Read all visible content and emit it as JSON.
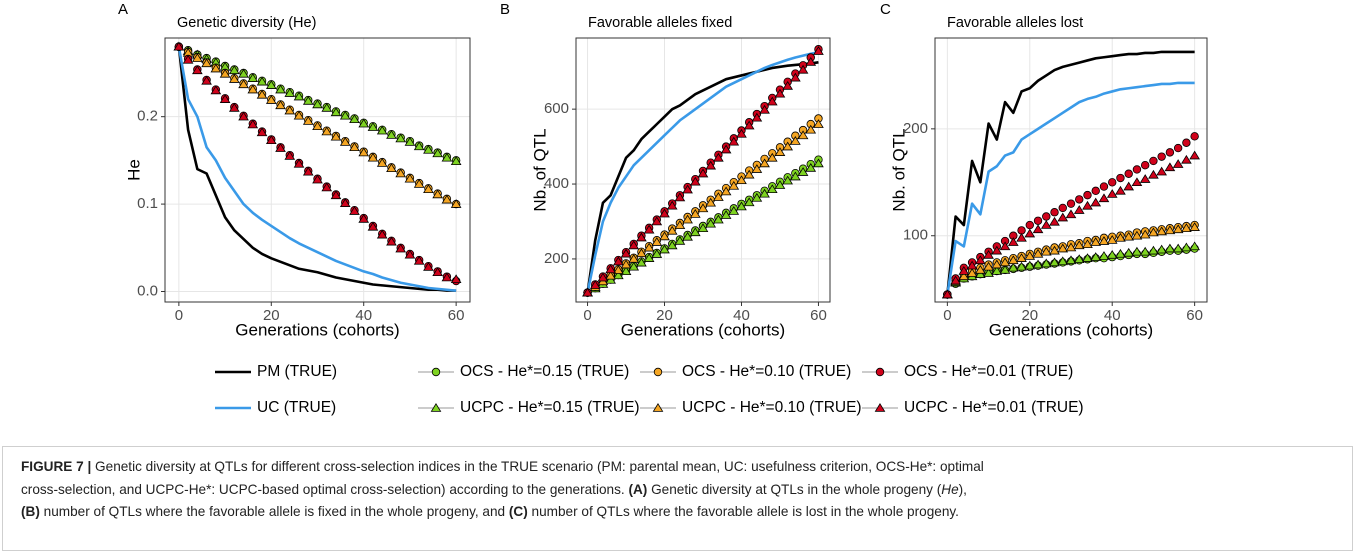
{
  "legend": [
    {
      "name": "PM (TRUE)",
      "color": "#000000",
      "marker": "line"
    },
    {
      "name": "UC (TRUE)",
      "color": "#3a9ae8",
      "marker": "line"
    },
    {
      "name": "OCS - He*=0.15 (TRUE)",
      "color": "#7ed321",
      "marker": "circle"
    },
    {
      "name": "UCPC - He*=0.15 (TRUE)",
      "color": "#7ed321",
      "marker": "triangle"
    },
    {
      "name": "OCS - He*=0.10 (TRUE)",
      "color": "#f5a623",
      "marker": "circle"
    },
    {
      "name": "UCPC - He*=0.10 (TRUE)",
      "color": "#f5a623",
      "marker": "triangle"
    },
    {
      "name": "OCS - He*=0.01 (TRUE)",
      "color": "#d0021b",
      "marker": "circle"
    },
    {
      "name": "UCPC - He*=0.01 (TRUE)",
      "color": "#d0021b",
      "marker": "triangle"
    }
  ],
  "chart_data": [
    {
      "type": "line",
      "panel": "A",
      "title": "Genetic diversity (He)",
      "y_label": "He",
      "x_label": "Generations (cohorts)",
      "x": [
        0,
        2,
        4,
        6,
        8,
        10,
        12,
        14,
        16,
        18,
        20,
        22,
        24,
        26,
        28,
        30,
        32,
        34,
        36,
        38,
        40,
        42,
        44,
        46,
        48,
        50,
        52,
        54,
        56,
        58,
        60
      ],
      "xlim": [
        -3,
        63
      ],
      "xticks": [
        0,
        20,
        40,
        60
      ],
      "ylim": [
        -0.012,
        0.29
      ],
      "yticks": [
        {
          "value": 0,
          "label": "0.0"
        },
        0.1,
        0.2
      ],
      "grid": true,
      "series": [
        {
          "values": [
            0.28,
            0.185,
            0.14,
            0.135,
            0.11,
            0.085,
            0.07,
            0.06,
            0.05,
            0.043,
            0.038,
            0.034,
            0.03,
            0.026,
            0.024,
            0.022,
            0.019,
            0.016,
            0.014,
            0.012,
            0.01,
            0.008,
            0.007,
            0.006,
            0.005,
            0.004,
            0.003,
            0.002,
            0.002,
            0.001,
            0.001
          ]
        },
        {
          "values": [
            0.28,
            0.22,
            0.2,
            0.165,
            0.15,
            0.13,
            0.115,
            0.1,
            0.09,
            0.082,
            0.075,
            0.068,
            0.061,
            0.055,
            0.05,
            0.045,
            0.04,
            0.035,
            0.031,
            0.027,
            0.023,
            0.02,
            0.016,
            0.013,
            0.01,
            0.008,
            0.006,
            0.004,
            0.003,
            0.002,
            0.001
          ]
        },
        {
          "values": [
            0.28,
            0.276,
            0.271,
            0.267,
            0.263,
            0.258,
            0.254,
            0.25,
            0.245,
            0.241,
            0.237,
            0.232,
            0.228,
            0.224,
            0.219,
            0.215,
            0.211,
            0.206,
            0.202,
            0.198,
            0.193,
            0.189,
            0.185,
            0.18,
            0.176,
            0.172,
            0.167,
            0.163,
            0.159,
            0.154,
            0.15
          ]
        },
        {
          "values": [
            0.28,
            0.275,
            0.271,
            0.266,
            0.262,
            0.257,
            0.253,
            0.249,
            0.244,
            0.24,
            0.236,
            0.231,
            0.227,
            0.223,
            0.218,
            0.214,
            0.21,
            0.205,
            0.201,
            0.197,
            0.192,
            0.188,
            0.184,
            0.179,
            0.175,
            0.171,
            0.166,
            0.162,
            0.158,
            0.153,
            0.149
          ]
        },
        {
          "values": [
            0.28,
            0.274,
            0.268,
            0.262,
            0.256,
            0.25,
            0.244,
            0.238,
            0.232,
            0.226,
            0.22,
            0.214,
            0.208,
            0.202,
            0.196,
            0.19,
            0.184,
            0.178,
            0.172,
            0.166,
            0.16,
            0.154,
            0.148,
            0.142,
            0.136,
            0.13,
            0.124,
            0.118,
            0.112,
            0.106,
            0.1
          ]
        },
        {
          "values": [
            0.28,
            0.273,
            0.267,
            0.261,
            0.255,
            0.249,
            0.243,
            0.237,
            0.231,
            0.225,
            0.219,
            0.213,
            0.207,
            0.201,
            0.195,
            0.189,
            0.183,
            0.177,
            0.171,
            0.165,
            0.159,
            0.153,
            0.147,
            0.141,
            0.135,
            0.129,
            0.123,
            0.117,
            0.111,
            0.105,
            0.1
          ]
        },
        {
          "values": [
            0.28,
            0.266,
            0.254,
            0.242,
            0.231,
            0.221,
            0.211,
            0.201,
            0.192,
            0.183,
            0.174,
            0.165,
            0.156,
            0.147,
            0.138,
            0.129,
            0.12,
            0.111,
            0.102,
            0.093,
            0.084,
            0.075,
            0.066,
            0.058,
            0.05,
            0.043,
            0.036,
            0.029,
            0.023,
            0.017,
            0.012
          ]
        },
        {
          "values": [
            0.28,
            0.265,
            0.253,
            0.241,
            0.23,
            0.22,
            0.21,
            0.2,
            0.191,
            0.182,
            0.173,
            0.164,
            0.155,
            0.146,
            0.137,
            0.128,
            0.119,
            0.11,
            0.101,
            0.092,
            0.083,
            0.074,
            0.065,
            0.057,
            0.049,
            0.042,
            0.035,
            0.028,
            0.022,
            0.016,
            0.014
          ]
        }
      ]
    },
    {
      "type": "line",
      "panel": "B",
      "title": "Favorable alleles fixed",
      "y_label": "Nb. of QTL",
      "x_label": "Generations (cohorts)",
      "x": [
        0,
        2,
        4,
        6,
        8,
        10,
        12,
        14,
        16,
        18,
        20,
        22,
        24,
        26,
        28,
        30,
        32,
        34,
        36,
        38,
        40,
        42,
        44,
        46,
        48,
        50,
        52,
        54,
        56,
        58,
        60
      ],
      "xlim": [
        -3,
        63
      ],
      "xticks": [
        0,
        20,
        40,
        60
      ],
      "ylim": [
        85,
        790
      ],
      "yticks": [
        200,
        400,
        600
      ],
      "grid": true,
      "series": [
        {
          "values": [
            110,
            250,
            350,
            370,
            420,
            470,
            490,
            520,
            540,
            560,
            580,
            600,
            610,
            625,
            640,
            650,
            660,
            670,
            680,
            685,
            690,
            695,
            700,
            705,
            710,
            713,
            716,
            718,
            720,
            722,
            725
          ]
        },
        {
          "values": [
            110,
            210,
            300,
            350,
            390,
            420,
            450,
            470,
            490,
            510,
            530,
            550,
            570,
            585,
            600,
            615,
            630,
            645,
            660,
            670,
            680,
            690,
            700,
            710,
            718,
            725,
            732,
            738,
            743,
            748,
            752
          ]
        },
        {
          "values": [
            110,
            122,
            134,
            145,
            157,
            169,
            181,
            193,
            205,
            216,
            228,
            240,
            252,
            264,
            276,
            288,
            299,
            311,
            323,
            335,
            347,
            358,
            370,
            382,
            394,
            406,
            418,
            429,
            441,
            453,
            465
          ]
        },
        {
          "values": [
            110,
            121,
            133,
            144,
            156,
            167,
            179,
            190,
            202,
            213,
            225,
            236,
            248,
            259,
            271,
            282,
            294,
            305,
            317,
            328,
            340,
            351,
            363,
            374,
            386,
            397,
            409,
            420,
            432,
            443,
            455
          ]
        },
        {
          "values": [
            110,
            126,
            141,
            157,
            172,
            188,
            203,
            219,
            234,
            250,
            265,
            281,
            296,
            312,
            327,
            343,
            358,
            374,
            389,
            405,
            420,
            436,
            451,
            467,
            482,
            498,
            513,
            529,
            544,
            560,
            575
          ]
        },
        {
          "values": [
            110,
            125,
            140,
            155,
            170,
            185,
            200,
            215,
            230,
            245,
            260,
            275,
            290,
            305,
            320,
            335,
            350,
            365,
            380,
            395,
            410,
            425,
            440,
            455,
            470,
            485,
            500,
            515,
            530,
            545,
            560
          ]
        },
        {
          "values": [
            110,
            132,
            153,
            175,
            197,
            218,
            240,
            262,
            283,
            305,
            327,
            348,
            370,
            392,
            413,
            435,
            457,
            478,
            500,
            522,
            543,
            565,
            587,
            608,
            630,
            652,
            673,
            695,
            717,
            738,
            760
          ]
        },
        {
          "values": [
            110,
            130,
            150,
            172,
            193,
            214,
            236,
            257,
            278,
            300,
            321,
            342,
            364,
            385,
            406,
            428,
            449,
            470,
            492,
            513,
            534,
            556,
            577,
            598,
            620,
            641,
            662,
            684,
            705,
            726,
            755
          ]
        }
      ]
    },
    {
      "type": "line",
      "panel": "C",
      "title": "Favorable alleles lost",
      "y_label": "Nb. of QTL",
      "x_label": "Generations (cohorts)",
      "x": [
        0,
        2,
        4,
        6,
        8,
        10,
        12,
        14,
        16,
        18,
        20,
        22,
        24,
        26,
        28,
        30,
        32,
        34,
        36,
        38,
        40,
        42,
        44,
        46,
        48,
        50,
        52,
        54,
        56,
        58,
        60
      ],
      "xlim": [
        -3,
        63
      ],
      "xticks": [
        0,
        20,
        40,
        60
      ],
      "ylim": [
        38,
        285
      ],
      "yticks": [
        100,
        200
      ],
      "grid": true,
      "series": [
        {
          "values": [
            45,
            118,
            110,
            170,
            150,
            205,
            190,
            225,
            215,
            235,
            238,
            245,
            250,
            255,
            258,
            260,
            262,
            264,
            266,
            267,
            268,
            269,
            270,
            270,
            271,
            271,
            272,
            272,
            272,
            272,
            272
          ]
        },
        {
          "values": [
            45,
            95,
            90,
            130,
            120,
            160,
            165,
            175,
            178,
            190,
            195,
            200,
            205,
            210,
            215,
            220,
            225,
            228,
            230,
            233,
            235,
            237,
            238,
            239,
            240,
            241,
            242,
            242,
            243,
            243,
            243
          ]
        },
        {
          "values": [
            45,
            55,
            60,
            62,
            64,
            66,
            67,
            68,
            69,
            70,
            71,
            72,
            73,
            74,
            75,
            76,
            77,
            78,
            79,
            79,
            80,
            81,
            82,
            83,
            83,
            84,
            85,
            86,
            86,
            87,
            88
          ]
        },
        {
          "values": [
            45,
            56,
            60,
            62,
            64,
            65,
            67,
            68,
            70,
            71,
            72,
            73,
            74,
            75,
            76,
            77,
            78,
            79,
            80,
            81,
            82,
            83,
            84,
            85,
            85,
            86,
            87,
            88,
            88,
            89,
            90
          ]
        },
        {
          "values": [
            45,
            58,
            64,
            67,
            70,
            73,
            75,
            77,
            79,
            81,
            83,
            85,
            87,
            89,
            90,
            92,
            93,
            95,
            96,
            98,
            99,
            100,
            101,
            103,
            104,
            105,
            106,
            107,
            108,
            109,
            110
          ]
        },
        {
          "values": [
            45,
            57,
            62,
            65,
            68,
            71,
            73,
            75,
            77,
            79,
            81,
            83,
            85,
            86,
            88,
            89,
            91,
            92,
            94,
            95,
            96,
            98,
            99,
            100,
            101,
            103,
            104,
            105,
            106,
            107,
            108
          ]
        },
        {
          "values": [
            45,
            60,
            70,
            75,
            80,
            85,
            90,
            95,
            100,
            105,
            110,
            114,
            118,
            122,
            126,
            130,
            134,
            138,
            142,
            146,
            150,
            154,
            158,
            162,
            166,
            170,
            174,
            178,
            182,
            187,
            193
          ]
        },
        {
          "values": [
            45,
            58,
            67,
            72,
            77,
            82,
            86,
            90,
            94,
            98,
            102,
            106,
            110,
            113,
            117,
            120,
            124,
            128,
            131,
            135,
            139,
            142,
            146,
            150,
            153,
            157,
            160,
            164,
            167,
            171,
            175
          ]
        }
      ]
    }
  ],
  "caption": {
    "lines": [
      [
        {
          "text": "FIGURE 7 |",
          "style": "bold"
        },
        {
          "text": " Genetic diversity at QTLs for different cross-selection indices in the TRUE scenario (PM: parental mean, UC: usefulness criterion, OCS-He*: optimal",
          "style": "normal"
        }
      ],
      [
        {
          "text": "cross-selection, and UCPC-He*: UCPC-based optimal cross-selection) according to the generations. ",
          "style": "normal"
        },
        {
          "text": "(A)",
          "style": "bold"
        },
        {
          "text": " Genetic diversity at QTLs in the whole progeny (",
          "style": "normal"
        },
        {
          "text": "He",
          "style": "italic"
        },
        {
          "text": "),",
          "style": "normal"
        }
      ],
      [
        {
          "text": "(B)",
          "style": "bold"
        },
        {
          "text": " number of QTLs where the favorable allele is fixed in the whole progeny, and ",
          "style": "normal"
        },
        {
          "text": "(C)",
          "style": "bold"
        },
        {
          "text": " number of QTLs where the favorable allele is lost in the whole progeny.",
          "style": "normal"
        }
      ]
    ]
  }
}
